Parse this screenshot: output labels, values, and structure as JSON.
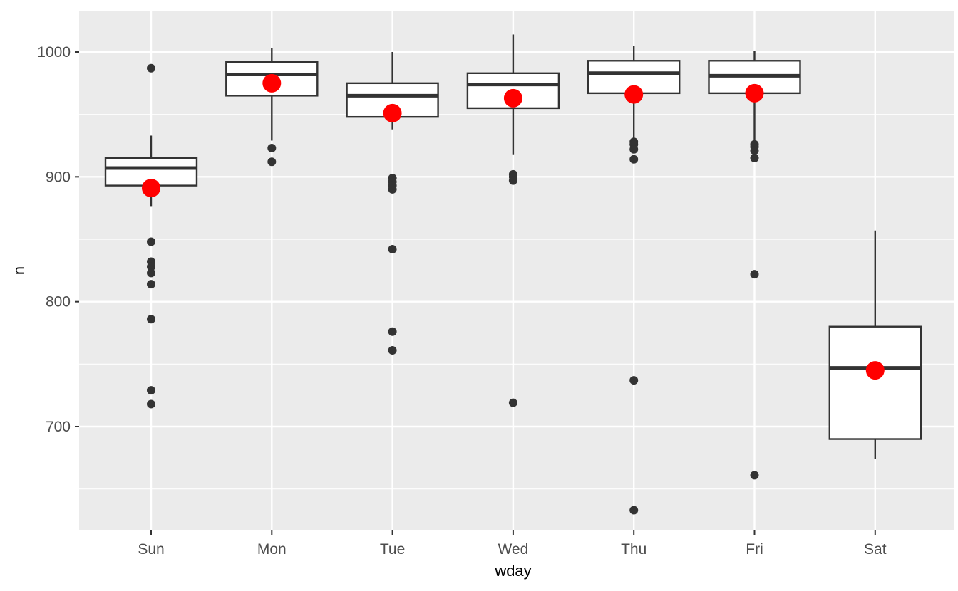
{
  "chart_data": {
    "type": "boxplot",
    "xlabel": "wday",
    "ylabel": "n",
    "categories": [
      "Sun",
      "Mon",
      "Tue",
      "Wed",
      "Thu",
      "Fri",
      "Sat"
    ],
    "y_ticks": [
      700,
      800,
      900,
      1000
    ],
    "ylim": [
      628,
      1033
    ],
    "grid": true,
    "boxes": [
      {
        "category": "Sun",
        "lower_whisker": 876,
        "q1": 893,
        "median": 907,
        "q3": 915,
        "upper_whisker": 933,
        "mean": 891,
        "outliers": [
          987,
          848,
          832,
          828,
          823,
          814,
          786,
          729,
          718
        ]
      },
      {
        "category": "Mon",
        "lower_whisker": 929,
        "q1": 965,
        "median": 982,
        "q3": 992,
        "upper_whisker": 1003,
        "mean": 975,
        "outliers": [
          923,
          912
        ]
      },
      {
        "category": "Tue",
        "lower_whisker": 938,
        "q1": 948,
        "median": 965,
        "q3": 975,
        "upper_whisker": 1000,
        "mean": 951,
        "outliers": [
          899,
          896,
          893,
          890,
          842,
          776,
          761
        ]
      },
      {
        "category": "Wed",
        "lower_whisker": 918,
        "q1": 955,
        "median": 974,
        "q3": 983,
        "upper_whisker": 1014,
        "mean": 963,
        "outliers": [
          902,
          900,
          897,
          719
        ]
      },
      {
        "category": "Thu",
        "lower_whisker": 931,
        "q1": 967,
        "median": 983,
        "q3": 993,
        "upper_whisker": 1005,
        "mean": 966,
        "outliers": [
          928,
          926,
          922,
          914,
          737,
          633
        ]
      },
      {
        "category": "Fri",
        "lower_whisker": 928,
        "q1": 967,
        "median": 981,
        "q3": 993,
        "upper_whisker": 1001,
        "mean": 967,
        "outliers": [
          926,
          924,
          921,
          915,
          822,
          661
        ]
      },
      {
        "category": "Sat",
        "lower_whisker": 674,
        "q1": 690,
        "median": 747,
        "q3": 780,
        "upper_whisker": 857,
        "mean": 745,
        "outliers": []
      }
    ],
    "colors": {
      "panel_background": "#ebebeb",
      "grid_major": "#ffffff",
      "box_line": "#333333",
      "box_fill": "#ffffff",
      "outlier": "#333333",
      "mean_point": "#ff0000"
    }
  }
}
